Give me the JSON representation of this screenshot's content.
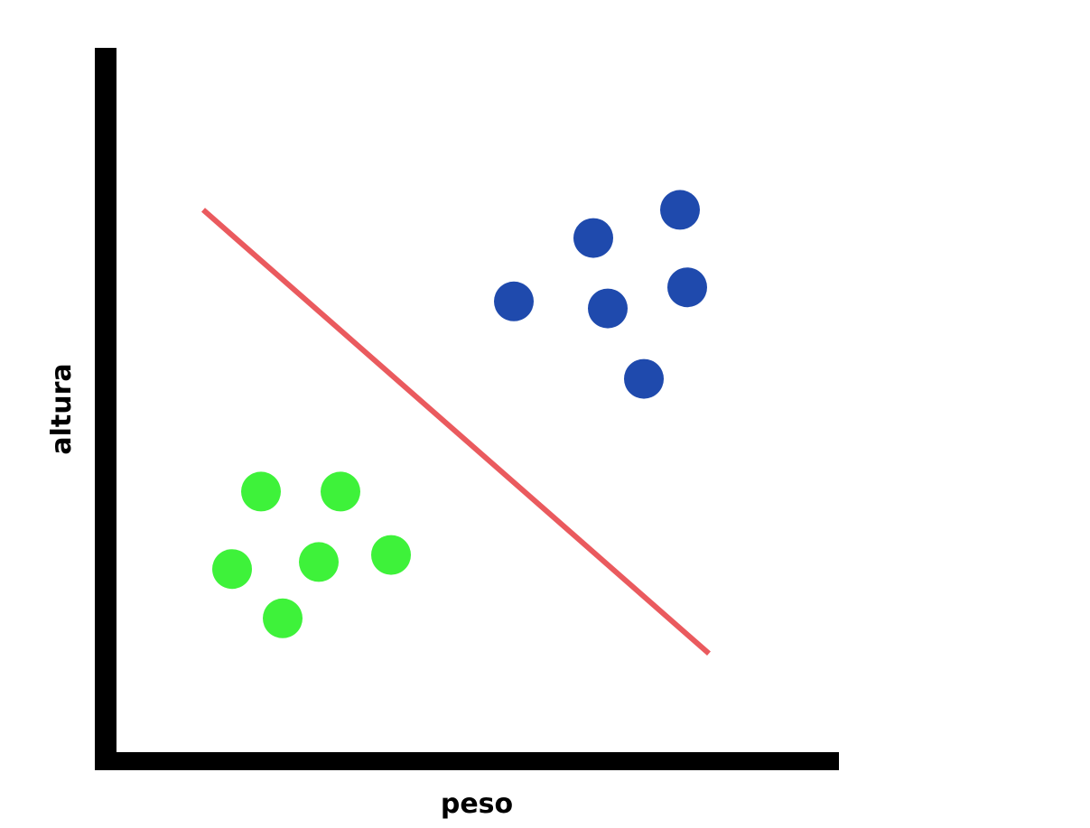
{
  "chart_data": {
    "type": "scatter",
    "title": "",
    "xlabel": "peso",
    "ylabel": "altura",
    "xlim": [
      0,
      10
    ],
    "ylim": [
      0,
      10
    ],
    "grid": false,
    "ticks": false,
    "series": [
      {
        "name": "blue",
        "color": "#1f4aad",
        "points": [
          {
            "x": 5.5,
            "y": 6.4
          },
          {
            "x": 6.6,
            "y": 7.3
          },
          {
            "x": 7.8,
            "y": 7.7
          },
          {
            "x": 6.8,
            "y": 6.3
          },
          {
            "x": 7.9,
            "y": 6.6
          },
          {
            "x": 7.3,
            "y": 5.3
          }
        ]
      },
      {
        "name": "green",
        "color": "#3ef23a",
        "points": [
          {
            "x": 2.0,
            "y": 3.7
          },
          {
            "x": 3.1,
            "y": 3.7
          },
          {
            "x": 2.8,
            "y": 2.7
          },
          {
            "x": 3.8,
            "y": 2.8
          },
          {
            "x": 1.6,
            "y": 2.6
          },
          {
            "x": 2.3,
            "y": 1.9
          }
        ]
      }
    ],
    "decision_line": {
      "color": "#ea5a5e",
      "from": {
        "x": 1.2,
        "y": 7.7
      },
      "to": {
        "x": 8.2,
        "y": 1.4
      }
    },
    "axis_color": "#000000"
  }
}
